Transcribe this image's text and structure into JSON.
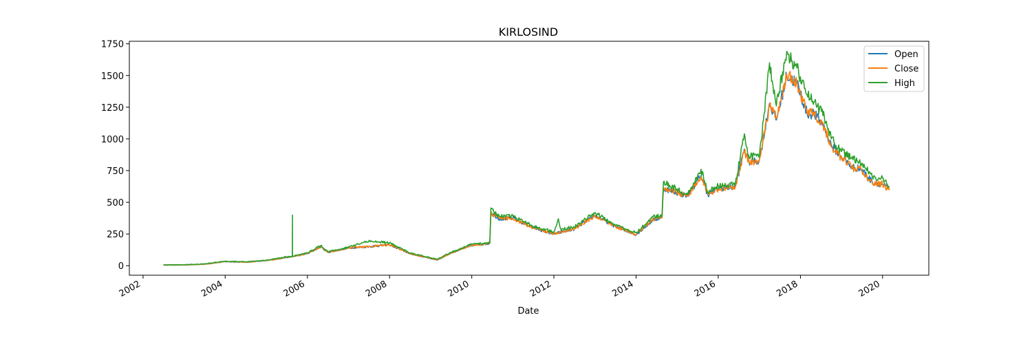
{
  "chart_data": {
    "type": "line",
    "title": "KIRLOSIND",
    "xlabel": "Date",
    "ylabel": "",
    "xlim": [
      "2001-09-01",
      "2021-02-15"
    ],
    "ylim": [
      -75,
      1770
    ],
    "x_ticks": [
      "2002",
      "2004",
      "2006",
      "2008",
      "2010",
      "2012",
      "2014",
      "2016",
      "2018",
      "2020"
    ],
    "y_ticks": [
      0,
      250,
      500,
      750,
      1000,
      1250,
      1500,
      1750
    ],
    "legend_position": "top-right",
    "grid": false,
    "series": [
      {
        "name": "Open",
        "color": "#1f77b4",
        "points": [
          [
            "2002-07-01",
            6
          ],
          [
            "2003-01-01",
            6
          ],
          [
            "2003-07-01",
            12
          ],
          [
            "2004-01-01",
            32
          ],
          [
            "2004-07-01",
            28
          ],
          [
            "2005-01-01",
            40
          ],
          [
            "2005-07-01",
            65
          ],
          [
            "2005-08-22",
            72
          ],
          [
            "2006-01-01",
            95
          ],
          [
            "2006-05-01",
            150
          ],
          [
            "2006-07-01",
            105
          ],
          [
            "2007-01-01",
            140
          ],
          [
            "2007-07-01",
            150
          ],
          [
            "2008-01-01",
            165
          ],
          [
            "2008-07-01",
            95
          ],
          [
            "2009-03-01",
            45
          ],
          [
            "2009-07-01",
            100
          ],
          [
            "2010-01-01",
            160
          ],
          [
            "2010-06-10",
            175
          ],
          [
            "2010-06-20",
            420
          ],
          [
            "2010-09-01",
            370
          ],
          [
            "2011-01-01",
            375
          ],
          [
            "2011-07-01",
            300
          ],
          [
            "2012-01-01",
            250
          ],
          [
            "2012-07-01",
            290
          ],
          [
            "2013-01-01",
            395
          ],
          [
            "2013-07-01",
            310
          ],
          [
            "2014-01-01",
            245
          ],
          [
            "2014-06-01",
            360
          ],
          [
            "2014-08-20",
            380
          ],
          [
            "2014-09-01",
            610
          ],
          [
            "2015-04-01",
            550
          ],
          [
            "2015-08-01",
            710
          ],
          [
            "2015-10-01",
            560
          ],
          [
            "2016-01-01",
            610
          ],
          [
            "2016-06-01",
            620
          ],
          [
            "2016-08-20",
            920
          ],
          [
            "2016-10-01",
            820
          ],
          [
            "2017-01-01",
            830
          ],
          [
            "2017-04-01",
            1280
          ],
          [
            "2017-06-01",
            1150
          ],
          [
            "2017-09-01",
            1500
          ],
          [
            "2017-12-01",
            1440
          ],
          [
            "2018-03-01",
            1200
          ],
          [
            "2018-05-01",
            1200
          ],
          [
            "2018-08-01",
            1100
          ],
          [
            "2018-10-01",
            950
          ],
          [
            "2019-01-01",
            860
          ],
          [
            "2019-04-01",
            780
          ],
          [
            "2019-07-01",
            760
          ],
          [
            "2019-10-01",
            660
          ],
          [
            "2020-01-01",
            640
          ],
          [
            "2020-03-01",
            600
          ]
        ]
      },
      {
        "name": "Close",
        "color": "#ff7f0e",
        "points": [
          [
            "2002-07-01",
            6
          ],
          [
            "2003-01-01",
            6
          ],
          [
            "2003-07-01",
            12
          ],
          [
            "2004-01-01",
            32
          ],
          [
            "2004-07-01",
            28
          ],
          [
            "2005-01-01",
            40
          ],
          [
            "2005-07-01",
            66
          ],
          [
            "2005-08-22",
            72
          ],
          [
            "2006-01-01",
            96
          ],
          [
            "2006-05-01",
            150
          ],
          [
            "2006-07-01",
            106
          ],
          [
            "2007-01-01",
            140
          ],
          [
            "2007-07-01",
            152
          ],
          [
            "2008-01-01",
            166
          ],
          [
            "2008-07-01",
            94
          ],
          [
            "2009-03-01",
            46
          ],
          [
            "2009-07-01",
            101
          ],
          [
            "2010-01-01",
            162
          ],
          [
            "2010-06-10",
            176
          ],
          [
            "2010-06-20",
            415
          ],
          [
            "2010-09-01",
            372
          ],
          [
            "2011-01-01",
            372
          ],
          [
            "2011-07-01",
            298
          ],
          [
            "2012-01-01",
            252
          ],
          [
            "2012-07-01",
            292
          ],
          [
            "2013-01-01",
            392
          ],
          [
            "2013-07-01",
            308
          ],
          [
            "2014-01-01",
            248
          ],
          [
            "2014-06-01",
            365
          ],
          [
            "2014-08-20",
            385
          ],
          [
            "2014-09-01",
            615
          ],
          [
            "2015-04-01",
            548
          ],
          [
            "2015-08-01",
            700
          ],
          [
            "2015-10-01",
            565
          ],
          [
            "2016-01-01",
            605
          ],
          [
            "2016-06-01",
            625
          ],
          [
            "2016-08-20",
            900
          ],
          [
            "2016-10-01",
            815
          ],
          [
            "2017-01-01",
            835
          ],
          [
            "2017-04-01",
            1260
          ],
          [
            "2017-06-01",
            1160
          ],
          [
            "2017-09-01",
            1510
          ],
          [
            "2017-12-01",
            1430
          ],
          [
            "2018-03-01",
            1210
          ],
          [
            "2018-05-01",
            1190
          ],
          [
            "2018-08-01",
            1090
          ],
          [
            "2018-10-01",
            940
          ],
          [
            "2019-01-01",
            850
          ],
          [
            "2019-04-01",
            775
          ],
          [
            "2019-07-01",
            755
          ],
          [
            "2019-10-01",
            650
          ],
          [
            "2020-01-01",
            645
          ],
          [
            "2020-03-01",
            595
          ]
        ]
      },
      {
        "name": "High",
        "color": "#2ca02c",
        "points": [
          [
            "2002-07-01",
            7
          ],
          [
            "2003-01-01",
            7
          ],
          [
            "2003-07-01",
            14
          ],
          [
            "2004-01-01",
            35
          ],
          [
            "2004-07-01",
            30
          ],
          [
            "2005-01-01",
            42
          ],
          [
            "2005-07-01",
            70
          ],
          [
            "2005-08-20",
            70
          ],
          [
            "2005-08-21",
            400
          ],
          [
            "2005-08-22",
            75
          ],
          [
            "2006-01-01",
            100
          ],
          [
            "2006-05-01",
            160
          ],
          [
            "2006-07-01",
            110
          ],
          [
            "2007-01-01",
            145
          ],
          [
            "2007-07-01",
            195
          ],
          [
            "2008-01-01",
            180
          ],
          [
            "2008-07-01",
            100
          ],
          [
            "2009-03-01",
            50
          ],
          [
            "2009-07-01",
            105
          ],
          [
            "2010-01-01",
            170
          ],
          [
            "2010-06-10",
            180
          ],
          [
            "2010-06-20",
            455
          ],
          [
            "2010-09-01",
            390
          ],
          [
            "2011-01-01",
            390
          ],
          [
            "2011-07-01",
            310
          ],
          [
            "2012-01-01",
            270
          ],
          [
            "2012-02-10",
            370
          ],
          [
            "2012-03-01",
            290
          ],
          [
            "2012-07-01",
            305
          ],
          [
            "2013-01-01",
            420
          ],
          [
            "2013-07-01",
            320
          ],
          [
            "2014-01-01",
            260
          ],
          [
            "2014-06-01",
            385
          ],
          [
            "2014-08-20",
            395
          ],
          [
            "2014-09-01",
            660
          ],
          [
            "2015-04-01",
            560
          ],
          [
            "2015-08-01",
            760
          ],
          [
            "2015-10-01",
            580
          ],
          [
            "2016-01-01",
            630
          ],
          [
            "2016-06-01",
            640
          ],
          [
            "2016-08-20",
            1040
          ],
          [
            "2016-10-01",
            860
          ],
          [
            "2017-01-01",
            860
          ],
          [
            "2017-04-01",
            1600
          ],
          [
            "2017-06-01",
            1260
          ],
          [
            "2017-09-01",
            1690
          ],
          [
            "2017-12-01",
            1560
          ],
          [
            "2018-03-01",
            1350
          ],
          [
            "2018-05-01",
            1290
          ],
          [
            "2018-08-01",
            1180
          ],
          [
            "2018-10-01",
            1000
          ],
          [
            "2019-01-01",
            900
          ],
          [
            "2019-04-01",
            850
          ],
          [
            "2019-07-01",
            810
          ],
          [
            "2019-10-01",
            700
          ],
          [
            "2020-01-01",
            690
          ],
          [
            "2020-03-01",
            620
          ]
        ]
      }
    ]
  }
}
